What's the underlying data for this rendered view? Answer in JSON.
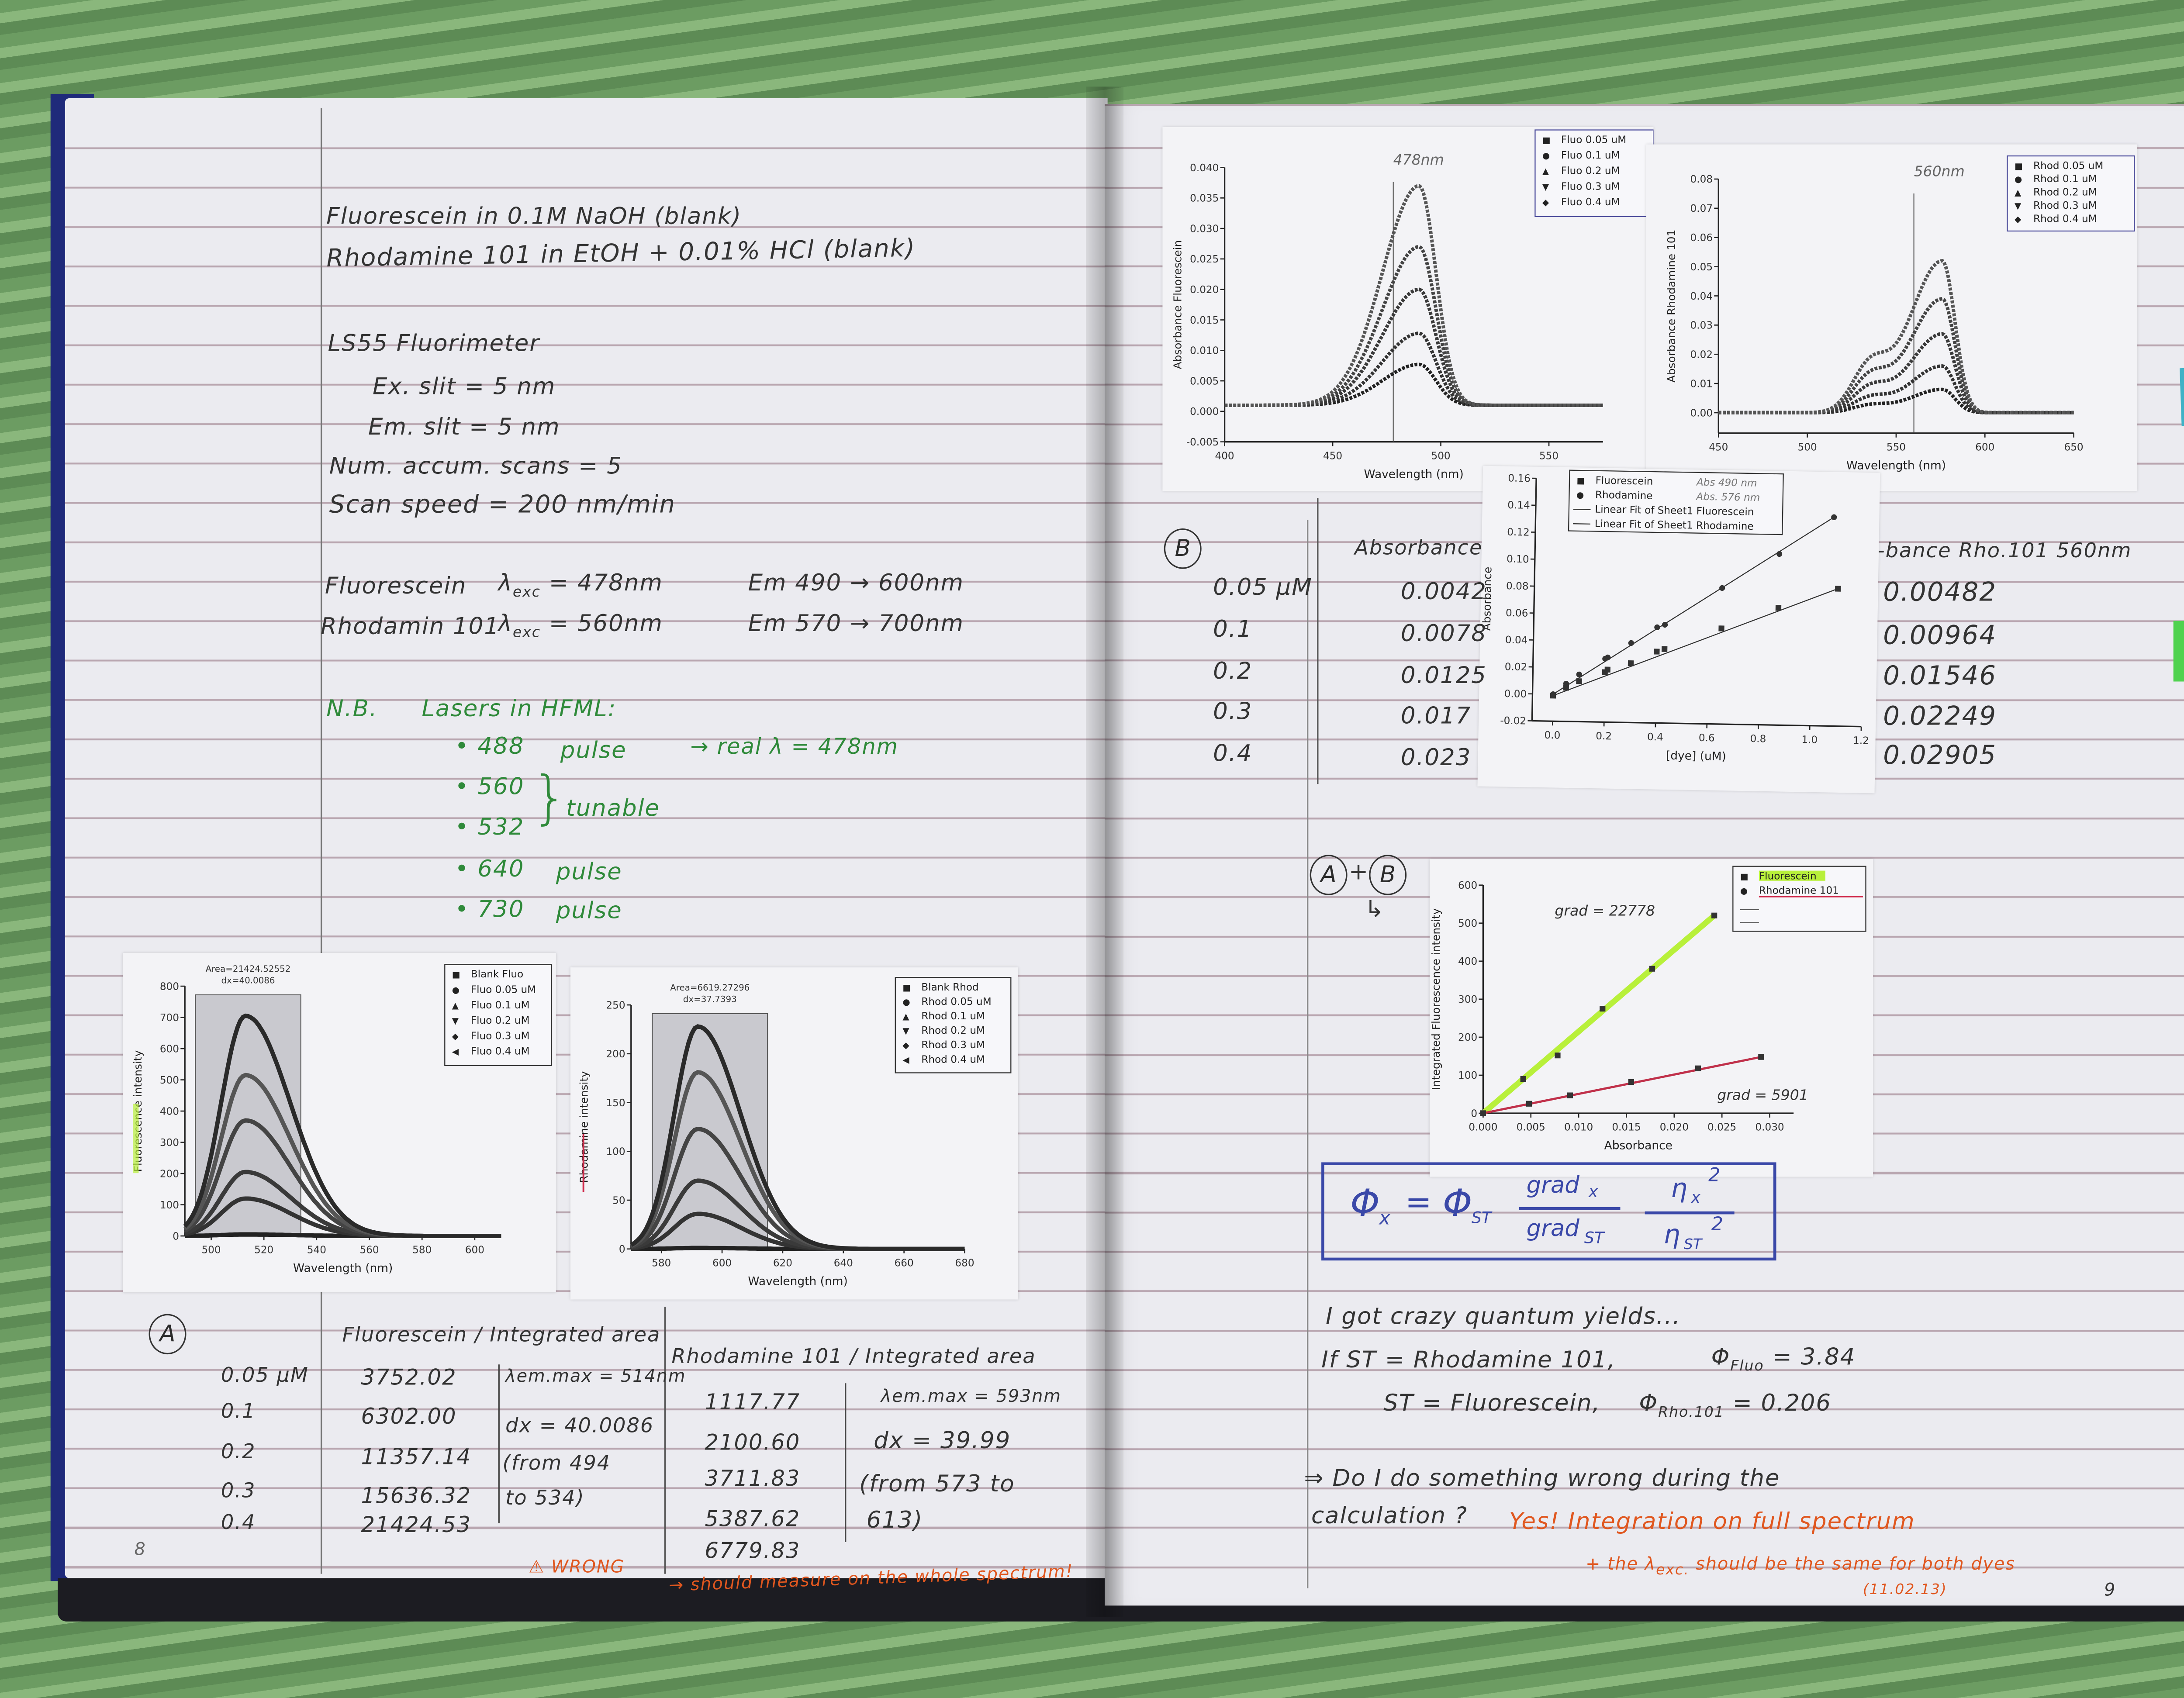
{
  "notebook": {
    "left_page": {
      "header_lines": [
        "Fluorescein in 0.1M NaOH (blank)",
        "Rhodamine 101 in EtOH + 0.01% HCl (blank)"
      ],
      "instrument": "LS55 Fluorimeter",
      "settings": [
        "Ex. slit = 5 nm",
        "Em. slit = 5 nm",
        "Num. accum. scans = 5",
        "Scan speed = 200 nm/min"
      ],
      "excitation": [
        {
          "dye": "Fluorescein",
          "lambda": "λ",
          "sub": "exc",
          "value": "= 478nm",
          "emission": "Em 490 → 600nm"
        },
        {
          "dye": "Rhodamin 101",
          "lambda": "λ",
          "sub": "exc",
          "value": "= 560nm",
          "emission": "Em 570 → 700nm"
        }
      ],
      "nb": {
        "label": "N.B.",
        "title": "Lasers in HFML:",
        "lasers": [
          {
            "wavelength": "• 488",
            "type": "pulse",
            "note": "→ real λ = 478nm"
          },
          {
            "wavelength": "• 560",
            "type": "",
            "note": ""
          },
          {
            "wavelength": "• 532",
            "type": "",
            "note": ""
          },
          {
            "wavelength": "• 640",
            "type": "pulse",
            "note": ""
          },
          {
            "wavelength": "• 730",
            "type": "pulse",
            "note": ""
          }
        ],
        "tunable_label": "tunable"
      },
      "table_a": {
        "label": "A",
        "concentrations": [
          "0.05 μM",
          "0.1",
          "0.2",
          "0.3",
          "0.4"
        ],
        "fluorescein_header": "Fluorescein / Integrated area",
        "fluorescein_values": [
          "3752.02",
          "6302.00",
          "11357.14",
          "15636.32",
          "21424.53"
        ],
        "fluorescein_notes": [
          "λem.max = 514nm",
          "dx = 40.0086",
          "(from 494",
          "to 534)"
        ],
        "rhodamine_header": "Rhodamine 101 / Integrated area",
        "rhodamine_values": [
          "1117.77",
          "2100.60",
          "3711.83",
          "5387.62",
          "6779.83"
        ],
        "rhodamine_notes": [
          "λem.max = 593nm",
          "dx = 39.99",
          "(from 573 to",
          "613)"
        ],
        "wrong_label": "⚠ WRONG",
        "correction": "→ should measure on the whole spectrum!"
      },
      "page_number": "8"
    },
    "right_page": {
      "table_b": {
        "label": "B",
        "concentrations": [
          "0.05 μM",
          "0.1",
          "0.2",
          "0.3",
          "0.4"
        ],
        "fluorescein_header": "Absorbance",
        "fluorescein_values": [
          "0.0042",
          "0.0078",
          "0.0125",
          "0.017",
          "0.023"
        ],
        "rhodamine_header": "-bance Rho.101 560nm",
        "rhodamine_values": [
          "0.00482",
          "0.00964",
          "0.01546",
          "0.02249",
          "0.02905"
        ]
      },
      "combined_label": {
        "a": "A",
        "plus": "+",
        "b": "B",
        "arrow": "↳"
      },
      "formula": {
        "phi_x": "Φ",
        "x": "x",
        "equals": "=",
        "phi_st": "Φ",
        "st": "ST",
        "grad_x": "grad",
        "grad_x_sub": "x",
        "grad_st": "grad",
        "grad_st_sub": "ST",
        "n_x": "η",
        "n_x_sub": "x",
        "n_st": "η",
        "n_st_sub": "ST",
        "square": "2"
      },
      "conclusions": {
        "line1": "I got crazy quantum yields...",
        "line2_prefix": "If  ST = Rhodamine 101,",
        "line2_phi": "Φ",
        "line2_sub": "Fluo",
        "line2_value": "= 3.84",
        "line3_prefix": "ST = Fluorescein,",
        "line3_phi": "Φ",
        "line3_sub": "Rho.101",
        "line3_value": "= 0.206",
        "question1": "⇒ Do I do something wrong during the",
        "question2": "calculation ?",
        "answer1": "Yes! Integration on full spectrum",
        "answer2_prefix": "+ the λ",
        "answer2_sub": "exc.",
        "answer2_suffix": "should be the same for both dyes",
        "date": "(11.02.13)"
      },
      "page_number": "9"
    },
    "sticky_notes": [
      {
        "color": "#3fb2c6"
      },
      {
        "color": "#4fd24e"
      }
    ]
  },
  "colors": {
    "highlight_green": "#b8f03a",
    "ink_orange": "#e0571f",
    "ink_green": "#2f8a3a",
    "ink_blue": "#3a48a8",
    "underline_red": "#d02a4a"
  },
  "chart_data": [
    {
      "id": "fluo-emission",
      "type": "line",
      "xlabel": "Wavelength (nm)",
      "ylabel": "Fluorescence intensity",
      "xlim": [
        490,
        610
      ],
      "ylim": [
        0,
        800
      ],
      "xticks": [
        "500",
        "520",
        "540",
        "560",
        "580",
        "600"
      ],
      "yticks": [
        "0",
        "100",
        "200",
        "300",
        "400",
        "500",
        "600",
        "700",
        "800"
      ],
      "peak_x": 513,
      "series": [
        {
          "name": "Blank Fluo",
          "peak": 5
        },
        {
          "name": "Fluo 0.05 uM",
          "peak": 120
        },
        {
          "name": "Fluo 0.1 uM",
          "peak": 205
        },
        {
          "name": "Fluo 0.2 uM",
          "peak": 370
        },
        {
          "name": "Fluo 0.3 uM",
          "peak": 515
        },
        {
          "name": "Fluo 0.4 uM",
          "peak": 705
        }
      ],
      "integration_range": [
        494,
        534
      ],
      "annotations": [
        "Area=21424.52552",
        "dx=40.0086"
      ],
      "legend": "top-right",
      "grid": false
    },
    {
      "id": "rhod-emission",
      "type": "line",
      "xlabel": "Wavelength (nm)",
      "ylabel": "Rhodamine intensity",
      "xlim": [
        570,
        680
      ],
      "ylim": [
        0,
        250
      ],
      "xticks": [
        "580",
        "600",
        "620",
        "640",
        "660",
        "680"
      ],
      "yticks": [
        "0",
        "50",
        "100",
        "150",
        "200",
        "250"
      ],
      "peak_x": 592,
      "series": [
        {
          "name": "Blank Rhod",
          "peak": 1
        },
        {
          "name": "Rhod 0.05 uM",
          "peak": 36
        },
        {
          "name": "Rhod 0.1 uM",
          "peak": 70
        },
        {
          "name": "Rhod 0.2 uM",
          "peak": 123
        },
        {
          "name": "Rhod 0.3 uM",
          "peak": 181
        },
        {
          "name": "Rhod 0.4 uM",
          "peak": 228
        }
      ],
      "integration_range": [
        577,
        615
      ],
      "annotations": [
        "Area=6619.27296",
        "dx=37.7393"
      ],
      "legend": "top-right",
      "grid": false
    },
    {
      "id": "fluo-absorbance",
      "type": "scatter",
      "xlabel": "Wavelength (nm)",
      "ylabel": "Absorbance Fluorescein",
      "xlim": [
        400,
        575
      ],
      "ylim": [
        -0.005,
        0.04
      ],
      "xticks": [
        "400",
        "450",
        "500",
        "550"
      ],
      "yticks": [
        "-0.005",
        "0.000",
        "0.005",
        "0.010",
        "0.015",
        "0.020",
        "0.025",
        "0.030",
        "0.035",
        "0.040"
      ],
      "peak_x": 490,
      "series": [
        {
          "name": "Fluo 0.05 uM",
          "peak": 0.0067
        },
        {
          "name": "Fluo 0.1 uM",
          "peak": 0.0118
        },
        {
          "name": "Fluo 0.2 uM",
          "peak": 0.019
        },
        {
          "name": "Fluo 0.3 uM",
          "peak": 0.026
        },
        {
          "name": "Fluo 0.4 uM",
          "peak": 0.036
        }
      ],
      "marker_line": {
        "x": 478,
        "label": "478nm"
      },
      "legend": "top-right",
      "grid": false
    },
    {
      "id": "rhod-absorbance",
      "type": "scatter",
      "xlabel": "Wavelength (nm)",
      "ylabel": "Absorbance Rhodamine 101",
      "xlim": [
        450,
        650
      ],
      "ylim": [
        -0.007,
        0.08
      ],
      "xticks": [
        "450",
        "500",
        "550",
        "600",
        "650"
      ],
      "yticks": [
        "0.00",
        "0.01",
        "0.02",
        "0.03",
        "0.04",
        "0.05",
        "0.06",
        "0.07",
        "0.08"
      ],
      "peak_x": 576,
      "series": [
        {
          "name": "Rhod 0.05 uM",
          "peak": 0.008
        },
        {
          "name": "Rhod 0.1 uM",
          "peak": 0.016
        },
        {
          "name": "Rhod 0.2 uM",
          "peak": 0.027
        },
        {
          "name": "Rhod 0.3 uM",
          "peak": 0.039
        },
        {
          "name": "Rhod 0.4 uM",
          "peak": 0.052
        }
      ],
      "marker_line": {
        "x": 560,
        "label": "560nm"
      },
      "legend": "top-right",
      "grid": false
    },
    {
      "id": "absorbance-vs-concentration",
      "type": "scatter",
      "xlabel": "[dye] (uM)",
      "ylabel": "Absorbance",
      "xlim": [
        -0.08,
        1.2
      ],
      "ylim": [
        -0.02,
        0.16
      ],
      "xticks": [
        "0.0",
        "0.2",
        "0.4",
        "0.6",
        "0.8",
        "1.0",
        "1.2"
      ],
      "yticks": [
        "-0.02",
        "0.00",
        "0.02",
        "0.04",
        "0.06",
        "0.08",
        "0.10",
        "0.12",
        "0.14",
        "0.16"
      ],
      "series": [
        {
          "name": "Fluorescein",
          "note": "Abs 490 nm",
          "marker": "square",
          "x": [
            0,
            0.05,
            0.1,
            0.2,
            0.21,
            0.3,
            0.4,
            0.43,
            0.65,
            0.87,
            1.1
          ],
          "y": [
            -0.001,
            0.005,
            0.01,
            0.017,
            0.019,
            0.024,
            0.033,
            0.035,
            0.051,
            0.067,
            0.082
          ]
        },
        {
          "name": "Rhodamine",
          "note": "Abs. 576 nm",
          "marker": "circle",
          "x": [
            0,
            0.05,
            0.1,
            0.2,
            0.21,
            0.3,
            0.4,
            0.43,
            0.65,
            0.87,
            1.08
          ],
          "y": [
            0,
            0.008,
            0.015,
            0.027,
            0.028,
            0.039,
            0.051,
            0.053,
            0.081,
            0.107,
            0.135
          ]
        }
      ],
      "fits": [
        "Linear Fit of Sheet1 Fluorescein",
        "Linear Fit of Sheet1 Rhodamine"
      ],
      "legend": "top",
      "grid": false
    },
    {
      "id": "integrated-vs-absorbance",
      "type": "scatter",
      "xlabel": "Absorbance",
      "ylabel": "Integrated Fluorescence intensity",
      "xlim": [
        0,
        0.0325
      ],
      "ylim": [
        0,
        600
      ],
      "xticks": [
        "0.000",
        "0.005",
        "0.010",
        "0.015",
        "0.020",
        "0.025",
        "0.030"
      ],
      "yticks": [
        "0",
        "100",
        "200",
        "300",
        "400",
        "500",
        "600"
      ],
      "series": [
        {
          "name": "Fluorescein",
          "color": "#b8f03a",
          "x": [
            0,
            0.0042,
            0.0078,
            0.0125,
            0.0177,
            0.0242
          ],
          "y": [
            0,
            90,
            152,
            275,
            380,
            520
          ],
          "gradient_label": "grad = 22778"
        },
        {
          "name": "Rhodamine 101",
          "color": "#c0304a",
          "x": [
            0,
            0.0048,
            0.0091,
            0.0155,
            0.0225,
            0.0291
          ],
          "y": [
            0,
            25,
            47,
            82,
            118,
            148
          ],
          "gradient_label": "grad = 5901"
        }
      ],
      "legend": "top-right",
      "grid": false
    }
  ]
}
